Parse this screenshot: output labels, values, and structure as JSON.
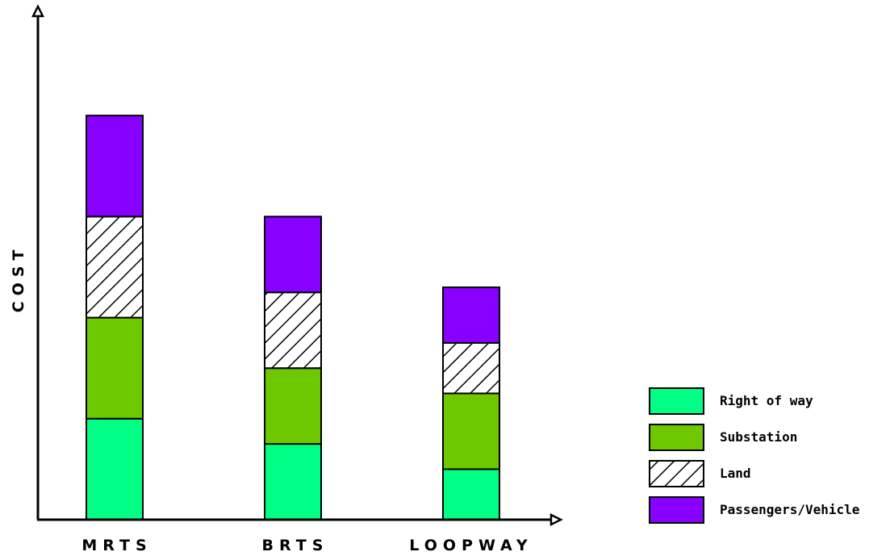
{
  "chart_data": {
    "type": "bar",
    "stacked": true,
    "ylabel": "COST",
    "categories": [
      "MRTS",
      "BRTS",
      "LOOPWAY"
    ],
    "series": [
      {
        "name": "Right of way",
        "values": [
          2,
          1.5,
          1
        ],
        "color": "#00ff85",
        "pattern": "solid"
      },
      {
        "name": "Substation",
        "values": [
          2,
          1.5,
          1.5
        ],
        "color": "#6ec800",
        "pattern": "solid"
      },
      {
        "name": "Land",
        "values": [
          2,
          1.5,
          1
        ],
        "color": "#ffffff",
        "pattern": "hatch"
      },
      {
        "name": "Passengers/Vehicle",
        "values": [
          2,
          1.5,
          1.1
        ],
        "color": "#8800ff",
        "pattern": "solid"
      }
    ],
    "ylim": [
      0,
      10
    ],
    "grid": false,
    "legend_position": "bottom-right"
  }
}
